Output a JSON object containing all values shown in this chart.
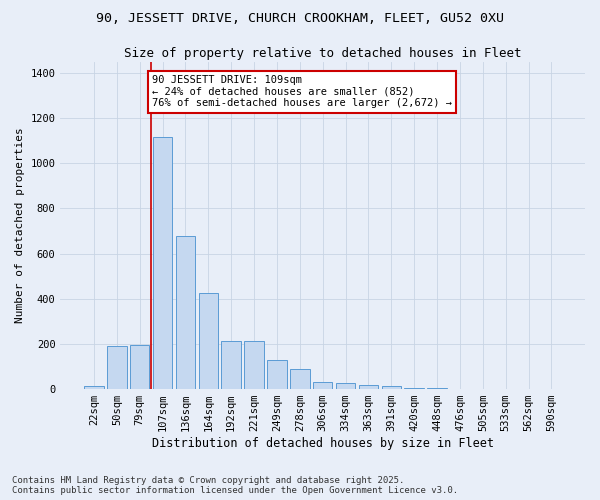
{
  "title_line1": "90, JESSETT DRIVE, CHURCH CROOKHAM, FLEET, GU52 0XU",
  "title_line2": "Size of property relative to detached houses in Fleet",
  "xlabel": "Distribution of detached houses by size in Fleet",
  "ylabel": "Number of detached properties",
  "categories": [
    "22sqm",
    "50sqm",
    "79sqm",
    "107sqm",
    "136sqm",
    "164sqm",
    "192sqm",
    "221sqm",
    "249sqm",
    "278sqm",
    "306sqm",
    "334sqm",
    "363sqm",
    "391sqm",
    "420sqm",
    "448sqm",
    "476sqm",
    "505sqm",
    "533sqm",
    "562sqm",
    "590sqm"
  ],
  "values": [
    15,
    193,
    195,
    1118,
    676,
    426,
    215,
    215,
    130,
    88,
    32,
    28,
    18,
    13,
    5,
    3,
    2,
    1,
    0,
    0,
    0
  ],
  "bar_color": "#c5d8f0",
  "bar_edge_color": "#5b9bd5",
  "grid_color": "#c8d4e4",
  "background_color": "#e8eef8",
  "vline_x_index": 3,
  "vline_color": "#cc0000",
  "annotation_text": "90 JESSETT DRIVE: 109sqm\n← 24% of detached houses are smaller (852)\n76% of semi-detached houses are larger (2,672) →",
  "annotation_box_color": "#ffffff",
  "annotation_box_edge": "#cc0000",
  "ylim": [
    0,
    1450
  ],
  "yticks": [
    0,
    200,
    400,
    600,
    800,
    1000,
    1200,
    1400
  ],
  "footer": "Contains HM Land Registry data © Crown copyright and database right 2025.\nContains public sector information licensed under the Open Government Licence v3.0.",
  "title1_fontsize": 9.5,
  "title2_fontsize": 9,
  "xlabel_fontsize": 8.5,
  "ylabel_fontsize": 8,
  "tick_fontsize": 7.5,
  "footer_fontsize": 6.5
}
